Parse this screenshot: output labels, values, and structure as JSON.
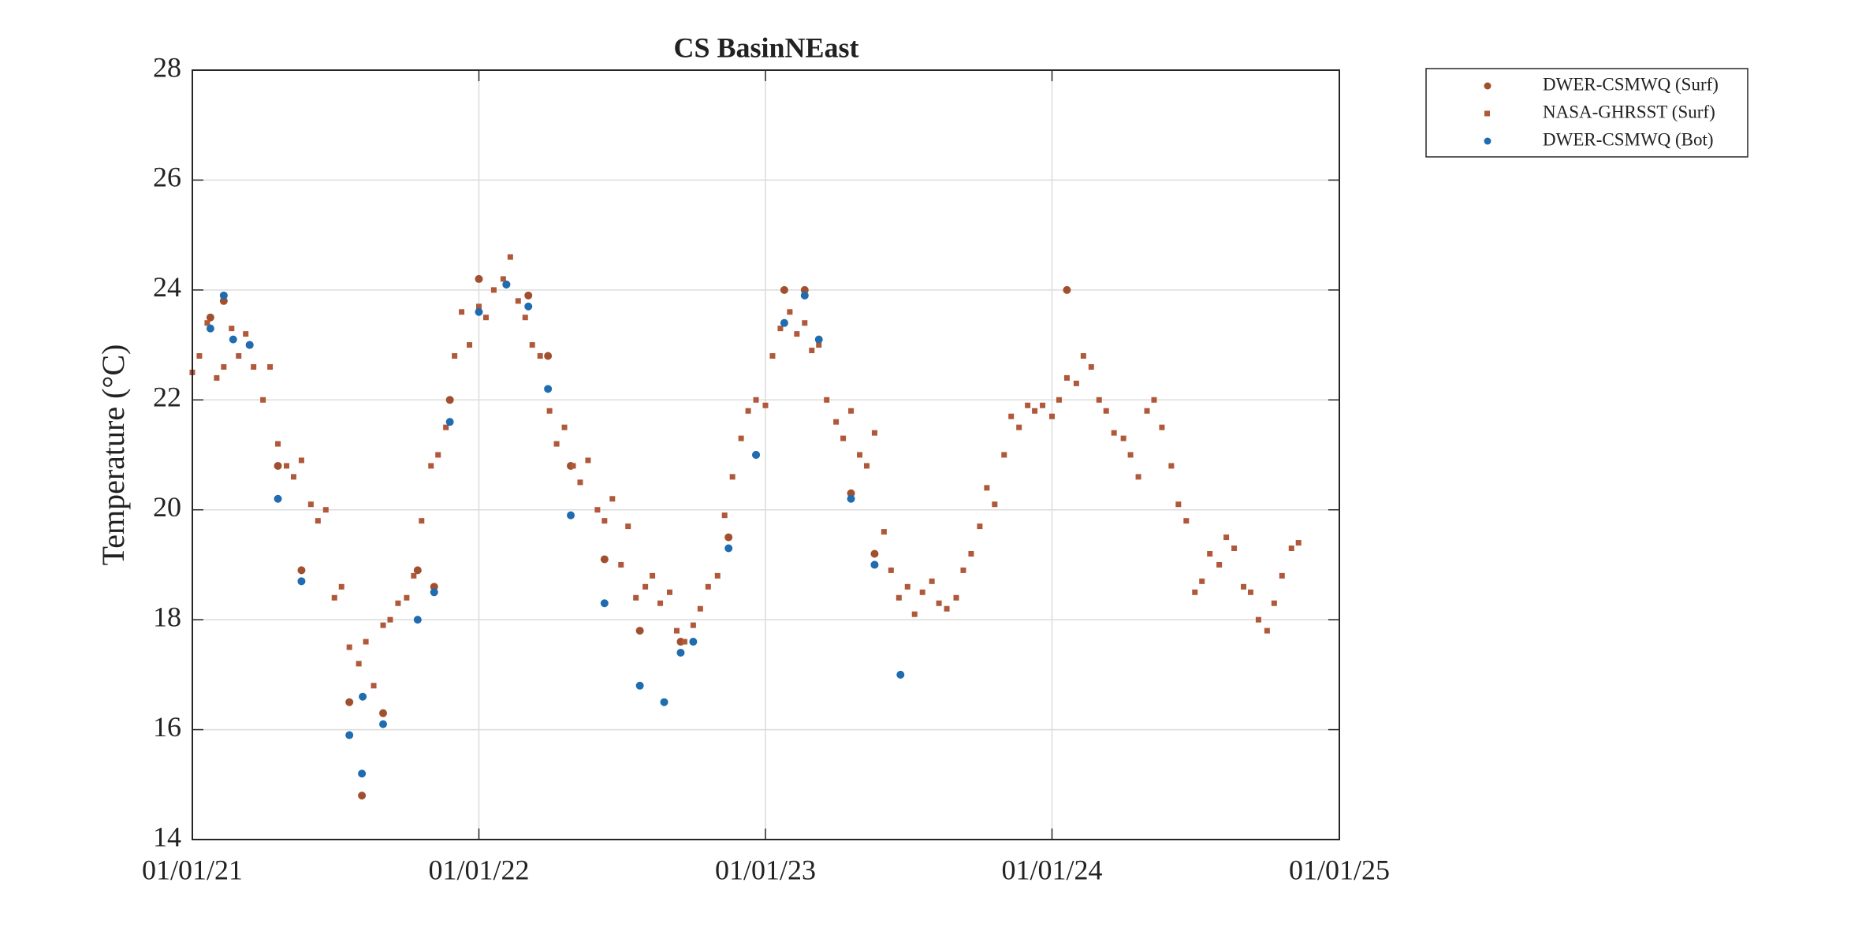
{
  "chart_data": {
    "type": "scatter",
    "title": "CS BasinNEast",
    "y_label": "Temperature (°C)",
    "xlim": [
      "2021-01-01",
      "2025-01-01"
    ],
    "xticks": [
      {
        "value": "2021-01-01",
        "label": "01/01/21"
      },
      {
        "value": "2022-01-01",
        "label": "01/01/22"
      },
      {
        "value": "2023-01-01",
        "label": "01/01/23"
      },
      {
        "value": "2024-01-01",
        "label": "01/01/24"
      },
      {
        "value": "2025-01-01",
        "label": "01/01/25"
      }
    ],
    "ylim": [
      14,
      28
    ],
    "yticks": [
      14,
      16,
      18,
      20,
      22,
      24,
      26,
      28
    ],
    "grid": true,
    "legend": "outside northeast",
    "series": [
      {
        "name": "DWER-CSMWQ (Surf)",
        "color": "#a0502f",
        "marker": "circle",
        "x": [
          "2021-01-24",
          "2021-02-10",
          "2021-03-15",
          "2021-04-20",
          "2021-05-20",
          "2021-07-20",
          "2021-08-05",
          "2021-09-01",
          "2021-10-15",
          "2021-11-05",
          "2021-11-25",
          "2022-01-01",
          "2022-02-05",
          "2022-03-05",
          "2022-03-30",
          "2022-04-28",
          "2022-06-10",
          "2022-07-25",
          "2022-09-15",
          "2022-11-15",
          "2022-12-20",
          "2023-01-25",
          "2023-02-20",
          "2023-04-20",
          "2023-05-20",
          "2024-01-20"
        ],
        "values": [
          23.5,
          23.8,
          23.0,
          20.8,
          18.9,
          16.5,
          14.8,
          16.3,
          18.9,
          18.6,
          22.0,
          24.2,
          24.1,
          23.9,
          22.8,
          20.8,
          19.1,
          17.8,
          17.6,
          19.5,
          21.0,
          24.0,
          24.0,
          20.3,
          19.2,
          24.0
        ]
      },
      {
        "name": "NASA-GHRSST (Surf)",
        "color": "#b0583a",
        "marker": "square",
        "x": [
          "2021-01-01",
          "2021-01-10",
          "2021-01-20",
          "2021-02-01",
          "2021-02-10",
          "2021-02-20",
          "2021-03-01",
          "2021-03-10",
          "2021-03-20",
          "2021-04-01",
          "2021-04-10",
          "2021-04-20",
          "2021-05-01",
          "2021-05-10",
          "2021-05-20",
          "2021-06-01",
          "2021-06-10",
          "2021-06-20",
          "2021-07-01",
          "2021-07-10",
          "2021-07-20",
          "2021-08-01",
          "2021-08-10",
          "2021-08-20",
          "2021-09-01",
          "2021-09-10",
          "2021-09-20",
          "2021-10-01",
          "2021-10-10",
          "2021-10-20",
          "2021-11-01",
          "2021-11-10",
          "2021-11-20",
          "2021-12-01",
          "2021-12-10",
          "2021-12-20",
          "2022-01-01",
          "2022-01-10",
          "2022-01-20",
          "2022-02-01",
          "2022-02-10",
          "2022-02-20",
          "2022-03-01",
          "2022-03-10",
          "2022-03-20",
          "2022-04-01",
          "2022-04-10",
          "2022-04-20",
          "2022-05-01",
          "2022-05-10",
          "2022-05-20",
          "2022-06-01",
          "2022-06-10",
          "2022-06-20",
          "2022-07-01",
          "2022-07-10",
          "2022-07-20",
          "2022-08-01",
          "2022-08-10",
          "2022-08-20",
          "2022-09-01",
          "2022-09-10",
          "2022-09-20",
          "2022-10-01",
          "2022-10-10",
          "2022-10-20",
          "2022-11-01",
          "2022-11-10",
          "2022-11-20",
          "2022-12-01",
          "2022-12-10",
          "2022-12-20",
          "2023-01-01",
          "2023-01-10",
          "2023-01-20",
          "2023-02-01",
          "2023-02-10",
          "2023-02-20",
          "2023-03-01",
          "2023-03-10",
          "2023-03-20",
          "2023-04-01",
          "2023-04-10",
          "2023-04-20",
          "2023-05-01",
          "2023-05-10",
          "2023-05-20",
          "2023-06-01",
          "2023-06-10",
          "2023-06-20",
          "2023-07-01",
          "2023-07-10",
          "2023-07-20",
          "2023-08-01",
          "2023-08-10",
          "2023-08-20",
          "2023-09-01",
          "2023-09-10",
          "2023-09-20",
          "2023-10-01",
          "2023-10-10",
          "2023-10-20",
          "2023-11-01",
          "2023-11-10",
          "2023-11-20",
          "2023-12-01",
          "2023-12-10",
          "2023-12-20",
          "2024-01-01",
          "2024-01-10",
          "2024-01-20",
          "2024-02-01",
          "2024-02-10",
          "2024-02-20",
          "2024-03-01",
          "2024-03-10",
          "2024-03-20",
          "2024-04-01",
          "2024-04-10",
          "2024-04-20",
          "2024-05-01",
          "2024-05-10",
          "2024-05-20",
          "2024-06-01",
          "2024-06-10",
          "2024-06-20",
          "2024-07-01",
          "2024-07-10",
          "2024-07-20",
          "2024-08-01",
          "2024-08-10",
          "2024-08-20",
          "2024-09-01",
          "2024-09-10",
          "2024-09-20",
          "2024-10-01",
          "2024-10-10",
          "2024-10-20",
          "2024-11-01",
          "2024-11-10"
        ],
        "values": [
          22.5,
          22.8,
          23.4,
          22.4,
          22.6,
          23.3,
          22.8,
          23.2,
          22.6,
          22.0,
          22.6,
          21.2,
          20.8,
          20.6,
          20.9,
          20.1,
          19.8,
          20.0,
          18.4,
          18.6,
          17.5,
          17.2,
          17.6,
          16.8,
          17.9,
          18.0,
          18.3,
          18.4,
          18.8,
          19.8,
          20.8,
          21.0,
          21.5,
          22.8,
          23.6,
          23.0,
          23.7,
          23.5,
          24.0,
          24.2,
          24.6,
          23.8,
          23.5,
          23.0,
          22.8,
          21.8,
          21.2,
          21.5,
          20.8,
          20.5,
          20.9,
          20.0,
          19.8,
          20.2,
          19.0,
          19.7,
          18.4,
          18.6,
          18.8,
          18.3,
          18.5,
          17.8,
          17.6,
          17.9,
          18.2,
          18.6,
          18.8,
          19.9,
          20.6,
          21.3,
          21.8,
          22.0,
          21.9,
          22.8,
          23.3,
          23.6,
          23.2,
          23.4,
          22.9,
          23.0,
          22.0,
          21.6,
          21.3,
          21.8,
          21.0,
          20.8,
          21.4,
          19.6,
          18.9,
          18.4,
          18.6,
          18.1,
          18.5,
          18.7,
          18.3,
          18.2,
          18.4,
          18.9,
          19.2,
          19.7,
          20.4,
          20.1,
          21.0,
          21.7,
          21.5,
          21.9,
          21.8,
          21.9,
          21.7,
          22.0,
          22.4,
          22.3,
          22.8,
          22.6,
          22.0,
          21.8,
          21.4,
          21.3,
          21.0,
          20.6,
          21.8,
          22.0,
          21.5,
          20.8,
          20.1,
          19.8,
          18.5,
          18.7,
          19.2,
          19.0,
          19.5,
          19.3,
          18.6,
          18.5,
          18.0,
          17.8,
          18.3,
          18.8,
          19.3,
          19.4
        ]
      },
      {
        "name": "DWER-CSMWQ (Bot)",
        "color": "#1f6db0",
        "marker": "circle",
        "x": [
          "2021-01-24",
          "2021-02-10",
          "2021-02-22",
          "2021-03-15",
          "2021-04-20",
          "2021-05-20",
          "2021-07-20",
          "2021-08-05",
          "2021-08-06",
          "2021-09-01",
          "2021-10-15",
          "2021-11-05",
          "2021-11-25",
          "2022-01-01",
          "2022-02-05",
          "2022-03-05",
          "2022-03-30",
          "2022-04-28",
          "2022-06-10",
          "2022-07-25",
          "2022-08-25",
          "2022-09-15",
          "2022-10-01",
          "2022-11-15",
          "2022-12-20",
          "2023-01-25",
          "2023-02-20",
          "2023-03-10",
          "2023-04-20",
          "2023-05-20",
          "2023-06-22"
        ],
        "values": [
          23.3,
          23.9,
          23.1,
          23.0,
          20.2,
          18.7,
          15.9,
          15.2,
          16.6,
          16.1,
          18.0,
          18.5,
          21.6,
          23.6,
          24.1,
          23.7,
          22.2,
          19.9,
          18.3,
          16.8,
          16.5,
          17.4,
          17.6,
          19.3,
          21.0,
          23.4,
          23.9,
          23.1,
          20.2,
          19.0,
          17.0
        ]
      }
    ]
  }
}
